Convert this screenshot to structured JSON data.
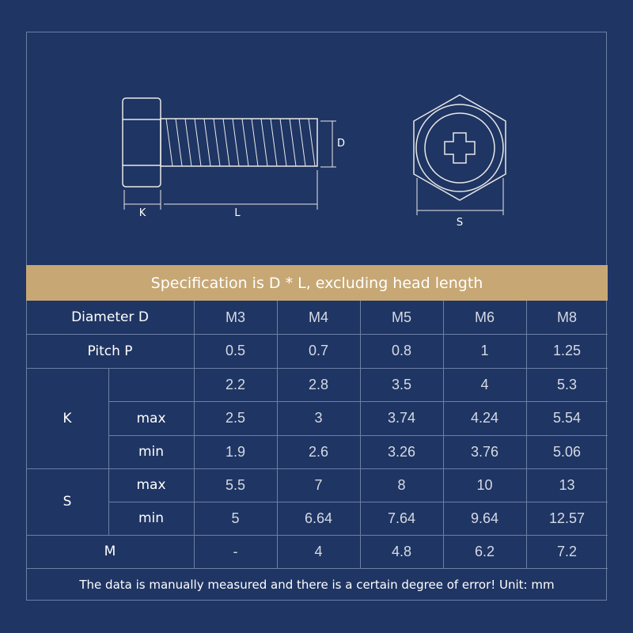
{
  "diagram": {
    "k": "K",
    "l": "L",
    "d": "D",
    "s": "S"
  },
  "banner": "Specification is D * L, excluding head length",
  "table": {
    "header": {
      "label": "Diameter  D",
      "values": [
        "M3",
        "M4",
        "M5",
        "M6",
        "M8"
      ]
    },
    "pitch": {
      "label": "Pitch P",
      "values": [
        "0.5",
        "0.7",
        "0.8",
        "1",
        "1.25"
      ]
    },
    "k": {
      "label": "K",
      "nominal": [
        "2.2",
        "2.8",
        "3.5",
        "4",
        "5.3"
      ],
      "max": {
        "label": "max",
        "values": [
          "2.5",
          "3",
          "3.74",
          "4.24",
          "5.54"
        ]
      },
      "min": {
        "label": "min",
        "values": [
          "1.9",
          "2.6",
          "3.26",
          "3.76",
          "5.06"
        ]
      }
    },
    "s": {
      "label": "S",
      "max": {
        "label": "max",
        "values": [
          "5.5",
          "7",
          "8",
          "10",
          "13"
        ]
      },
      "min": {
        "label": "min",
        "values": [
          "5",
          "6.64",
          "7.64",
          "9.64",
          "12.57"
        ]
      }
    },
    "m": {
      "label": "M",
      "values": [
        "-",
        "4",
        "4.8",
        "6.2",
        "7.2"
      ]
    }
  },
  "footer": "The data is manually measured and there is a certain degree of error!   Unit: mm"
}
